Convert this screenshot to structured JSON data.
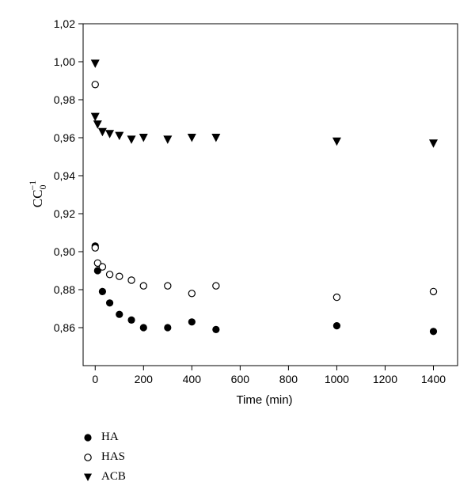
{
  "chart_data": {
    "type": "scatter",
    "title": "",
    "xlabel": "Time (min)",
    "ylabel": "CC0−1",
    "xlim": [
      -50,
      1500
    ],
    "ylim": [
      0.84,
      1.02
    ],
    "xticks": [
      0,
      200,
      400,
      600,
      800,
      1000,
      1200,
      1400
    ],
    "yticks": [
      "0,86",
      "0,88",
      "0,90",
      "0,92",
      "0,94",
      "0,96",
      "0,98",
      "1,00",
      "1,02"
    ],
    "ytick_values": [
      0.86,
      0.88,
      0.9,
      0.92,
      0.94,
      0.96,
      0.98,
      1.0,
      1.02
    ],
    "grid": false,
    "legend_position": "below",
    "series": [
      {
        "name": "HA",
        "marker": "filled-circle",
        "color": "#000000",
        "points": [
          [
            0,
            0.903
          ],
          [
            10,
            0.89
          ],
          [
            30,
            0.879
          ],
          [
            60,
            0.873
          ],
          [
            100,
            0.867
          ],
          [
            150,
            0.864
          ],
          [
            200,
            0.86
          ],
          [
            300,
            0.86
          ],
          [
            400,
            0.863
          ],
          [
            500,
            0.859
          ],
          [
            1000,
            0.861
          ],
          [
            1400,
            0.858
          ]
        ]
      },
      {
        "name": "HAS",
        "marker": "open-circle",
        "color": "#000000",
        "points": [
          [
            0,
            0.988
          ],
          [
            0,
            0.902
          ],
          [
            10,
            0.894
          ],
          [
            30,
            0.892
          ],
          [
            60,
            0.888
          ],
          [
            100,
            0.887
          ],
          [
            150,
            0.885
          ],
          [
            200,
            0.882
          ],
          [
            300,
            0.882
          ],
          [
            400,
            0.878
          ],
          [
            500,
            0.882
          ],
          [
            1000,
            0.876
          ],
          [
            1400,
            0.879
          ]
        ]
      },
      {
        "name": "ACB",
        "marker": "filled-triangle-down",
        "color": "#000000",
        "points": [
          [
            0,
            0.999
          ],
          [
            0,
            0.971
          ],
          [
            10,
            0.967
          ],
          [
            30,
            0.963
          ],
          [
            60,
            0.962
          ],
          [
            100,
            0.961
          ],
          [
            150,
            0.959
          ],
          [
            200,
            0.96
          ],
          [
            300,
            0.959
          ],
          [
            400,
            0.96
          ],
          [
            500,
            0.96
          ],
          [
            1000,
            0.958
          ],
          [
            1400,
            0.957
          ]
        ]
      }
    ]
  },
  "legend": {
    "items": [
      {
        "label": "HA"
      },
      {
        "label": "HAS"
      },
      {
        "label": "ACB"
      }
    ]
  }
}
